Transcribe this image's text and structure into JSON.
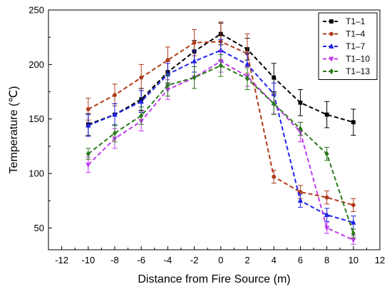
{
  "chart_data": {
    "type": "line",
    "xlabel": "Distance from Fire Source (m)",
    "ylabel": "Temperature (℃)",
    "xlim": [
      -13,
      12
    ],
    "ylim": [
      30,
      250
    ],
    "xticks": [
      -12,
      -10,
      -8,
      -6,
      -4,
      -2,
      0,
      2,
      4,
      6,
      8,
      10,
      12
    ],
    "yticks": [
      50,
      100,
      150,
      200,
      250
    ],
    "grid": false,
    "legend_position": "top-right",
    "x": [
      -10,
      -8,
      -6,
      -4,
      -2,
      0,
      2,
      4,
      6,
      8,
      10
    ],
    "series": [
      {
        "name": "T1–1",
        "color": "#000000",
        "marker": "square",
        "values": [
          145,
          154,
          168,
          193,
          212,
          228,
          214,
          188,
          165,
          154,
          147
        ],
        "errors": [
          10,
          10,
          10,
          10,
          10,
          10,
          10,
          13,
          12,
          12,
          12
        ]
      },
      {
        "name": "T1–4",
        "color": "#b03a1a",
        "marker": "circle",
        "values": [
          159,
          172,
          188,
          204,
          220,
          221,
          210,
          97,
          83,
          78,
          71
        ],
        "errors": [
          10,
          10,
          12,
          12,
          12,
          18,
          18,
          6,
          6,
          6,
          6
        ]
      },
      {
        "name": "T1–7",
        "color": "#1f22e8",
        "marker": "triangle-up",
        "values": [
          144,
          154,
          166,
          191,
          203,
          213,
          200,
          173,
          75,
          62,
          55
        ],
        "errors": [
          10,
          10,
          10,
          10,
          10,
          10,
          10,
          10,
          6,
          6,
          6
        ]
      },
      {
        "name": "T1–10",
        "color": "#c23cf0",
        "marker": "triangle-down",
        "values": [
          108,
          132,
          148,
          177,
          188,
          203,
          189,
          164,
          138,
          50,
          39
        ],
        "errors": [
          7,
          9,
          9,
          9,
          10,
          10,
          9,
          9,
          9,
          5,
          4
        ]
      },
      {
        "name": "T1–13",
        "color": "#2a7a1a",
        "marker": "diamond",
        "values": [
          118,
          137,
          153,
          181,
          188,
          199,
          187,
          164,
          141,
          118,
          45
        ],
        "errors": [
          5,
          8,
          8,
          10,
          10,
          10,
          10,
          10,
          6,
          6,
          4
        ]
      }
    ]
  }
}
